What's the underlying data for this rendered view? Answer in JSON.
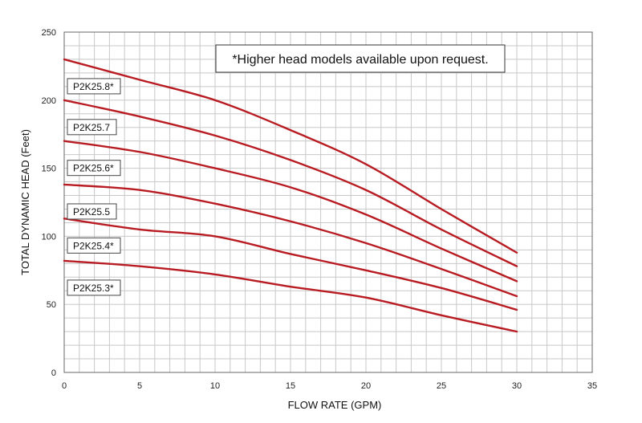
{
  "chart_data": {
    "type": "line",
    "title": "",
    "xlabel": "FLOW RATE (GPM)",
    "ylabel": "TOTAL DYNAMIC HEAD (Feet)",
    "xlim": [
      0,
      35
    ],
    "ylim": [
      0,
      250
    ],
    "x_ticks": [
      0,
      5,
      10,
      15,
      20,
      25,
      30,
      35
    ],
    "y_ticks": [
      0,
      50,
      100,
      150,
      200,
      250
    ],
    "x_minor_step": 1,
    "y_minor_step": 10,
    "grid": true,
    "line_color": "#b81c22",
    "annotation": "*Higher head models available upon request.",
    "series": [
      {
        "name": "P2K25.8*",
        "x": [
          0,
          5,
          10,
          15,
          20,
          25,
          30
        ],
        "values": [
          230,
          215,
          200,
          178,
          153,
          120,
          88
        ]
      },
      {
        "name": "P2K25.7",
        "x": [
          0,
          5,
          10,
          15,
          20,
          25,
          30
        ],
        "values": [
          200,
          188,
          174,
          156,
          134,
          105,
          78
        ]
      },
      {
        "name": "P2K25.6*",
        "x": [
          0,
          5,
          10,
          15,
          20,
          25,
          30
        ],
        "values": [
          170,
          162,
          150,
          136,
          116,
          91,
          67
        ]
      },
      {
        "name": "P2K25.5",
        "x": [
          0,
          5,
          10,
          15,
          20,
          25,
          30
        ],
        "values": [
          138,
          134,
          124,
          111,
          95,
          76,
          56
        ]
      },
      {
        "name": "P2K25.4*",
        "x": [
          0,
          5,
          10,
          15,
          20,
          25,
          30
        ],
        "values": [
          113,
          105,
          100,
          87,
          75,
          62,
          46
        ]
      },
      {
        "name": "P2K25.3*",
        "x": [
          0,
          5,
          10,
          15,
          20,
          25,
          30
        ],
        "values": [
          82,
          78,
          72,
          63,
          55,
          42,
          30
        ]
      }
    ]
  }
}
